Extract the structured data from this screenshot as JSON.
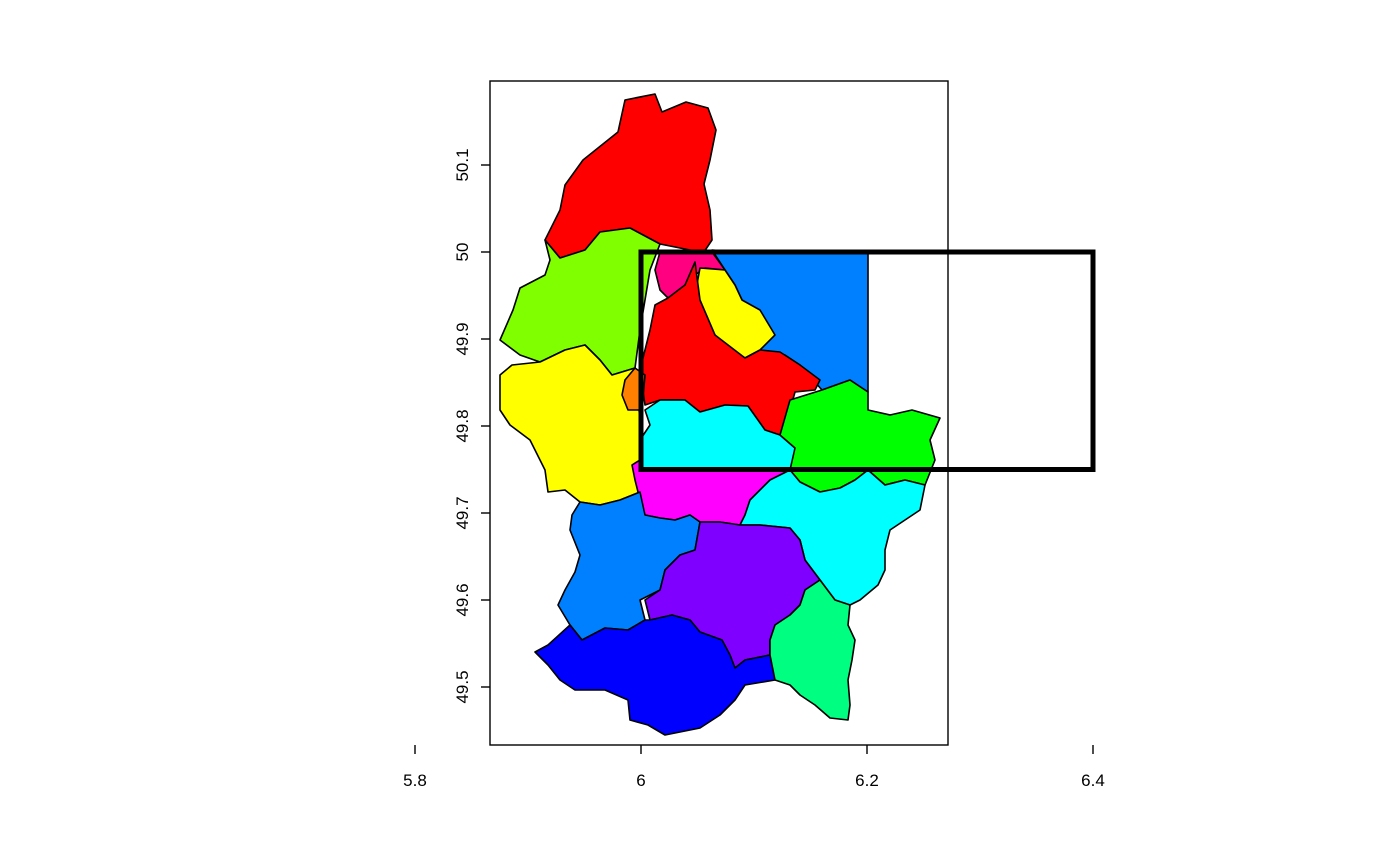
{
  "map": {
    "x_ticks": [
      "5.8",
      "6",
      "6.2",
      "6.4"
    ],
    "y_ticks": [
      "49.5",
      "49.6",
      "49.7",
      "49.8",
      "49.9",
      "50",
      "50.1"
    ],
    "extent": {
      "xlim": [
        5.73,
        6.53
      ],
      "ylim": [
        49.45,
        50.2
      ]
    },
    "bounding_box": {
      "xmin": 6.0,
      "xmax": 6.4,
      "ymin": 49.75,
      "ymax": 50.0,
      "color": "#000000"
    },
    "regions": [
      {
        "id": "north",
        "color": "#ff0000"
      },
      {
        "id": "northwest",
        "color": "#80ff00"
      },
      {
        "id": "northeast",
        "color": "#0080ff"
      },
      {
        "id": "north-center",
        "color": "#ff0080"
      },
      {
        "id": "center-yellow",
        "color": "#ffff00"
      },
      {
        "id": "center-red",
        "color": "#ff0000"
      },
      {
        "id": "west",
        "color": "#ffff00"
      },
      {
        "id": "west-small",
        "color": "#ff8000"
      },
      {
        "id": "center-cyan",
        "color": "#00ffff"
      },
      {
        "id": "east",
        "color": "#00ff00"
      },
      {
        "id": "center-magenta",
        "color": "#ff00ff"
      },
      {
        "id": "southeast",
        "color": "#00ffff"
      },
      {
        "id": "southwest",
        "color": "#0080ff"
      },
      {
        "id": "south-center",
        "color": "#8000ff"
      },
      {
        "id": "south",
        "color": "#0000ff"
      },
      {
        "id": "south-east",
        "color": "#00ff80"
      }
    ]
  }
}
